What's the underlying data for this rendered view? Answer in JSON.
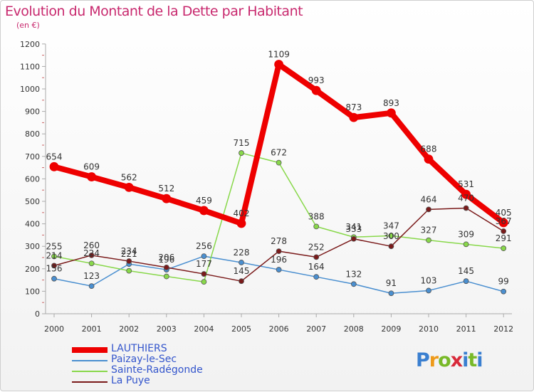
{
  "header": {
    "title": "Evolution du Montant de la Dette par Habitant",
    "subtitle": "(en €)"
  },
  "logo": {
    "letters": [
      "P",
      "r",
      "o",
      "x",
      "i",
      "t",
      "i"
    ],
    "colors": [
      "#3a7fd0",
      "#ee9a1a",
      "#78b928",
      "#d82a3a",
      "#3a7fd0",
      "#78b928",
      "#3a7fd0"
    ]
  },
  "chart_data": {
    "type": "line",
    "title": "Evolution du Montant de la Dette par Habitant",
    "ylabel": "(en €)",
    "xlabel": "",
    "ylim": [
      0,
      1200
    ],
    "yticks": [
      0,
      100,
      200,
      300,
      400,
      500,
      600,
      700,
      800,
      900,
      1000,
      1100,
      1200
    ],
    "x": [
      "2000",
      "2001",
      "2002",
      "2003",
      "2004",
      "2005",
      "2006",
      "2007",
      "2008",
      "2009",
      "2010",
      "2011",
      "2012"
    ],
    "grid": false,
    "legend": "bottom-left",
    "series": [
      {
        "name": "LAUTHIERS",
        "color": "#ee0000",
        "values": [
          654,
          609,
          562,
          512,
          459,
          402,
          1109,
          993,
          873,
          893,
          688,
          531,
          405
        ]
      },
      {
        "name": "Paizay-le-Sec",
        "color": "#4a8fd0",
        "values": [
          156,
          123,
          221,
          196,
          256,
          228,
          196,
          164,
          132,
          91,
          103,
          145,
          99
        ]
      },
      {
        "name": "Sainte-Radégonde",
        "color": "#88d84a",
        "values": [
          255,
          224,
          191,
          166,
          142,
          715,
          672,
          388,
          341,
          347,
          327,
          309,
          291
        ]
      },
      {
        "name": "La Puye",
        "color": "#7a1a1a",
        "values": [
          214,
          260,
          234,
          206,
          177,
          145,
          278,
          252,
          333,
          300,
          464,
          470,
          367
        ]
      }
    ],
    "data_labels": [
      {
        "series": 0,
        "values": [
          "654",
          "609",
          "562",
          "512",
          "459",
          "402",
          "1109",
          "993",
          "873",
          "893",
          "688",
          "531",
          "405"
        ]
      },
      {
        "series": 1,
        "values": [
          "156",
          "123",
          "221",
          "196",
          "256",
          "228",
          "196",
          "164",
          "132",
          "91",
          "103",
          "145",
          "99"
        ]
      },
      {
        "series": 2,
        "values": [
          "255",
          "224",
          "",
          "",
          "",
          "715",
          "672",
          "388",
          "341",
          "347",
          "327",
          "309",
          "291"
        ]
      },
      {
        "series": 3,
        "values": [
          "214",
          "260",
          "234",
          "206",
          "177",
          "145",
          "278",
          "252",
          "333",
          "300",
          "464",
          "470",
          "367"
        ]
      }
    ]
  }
}
